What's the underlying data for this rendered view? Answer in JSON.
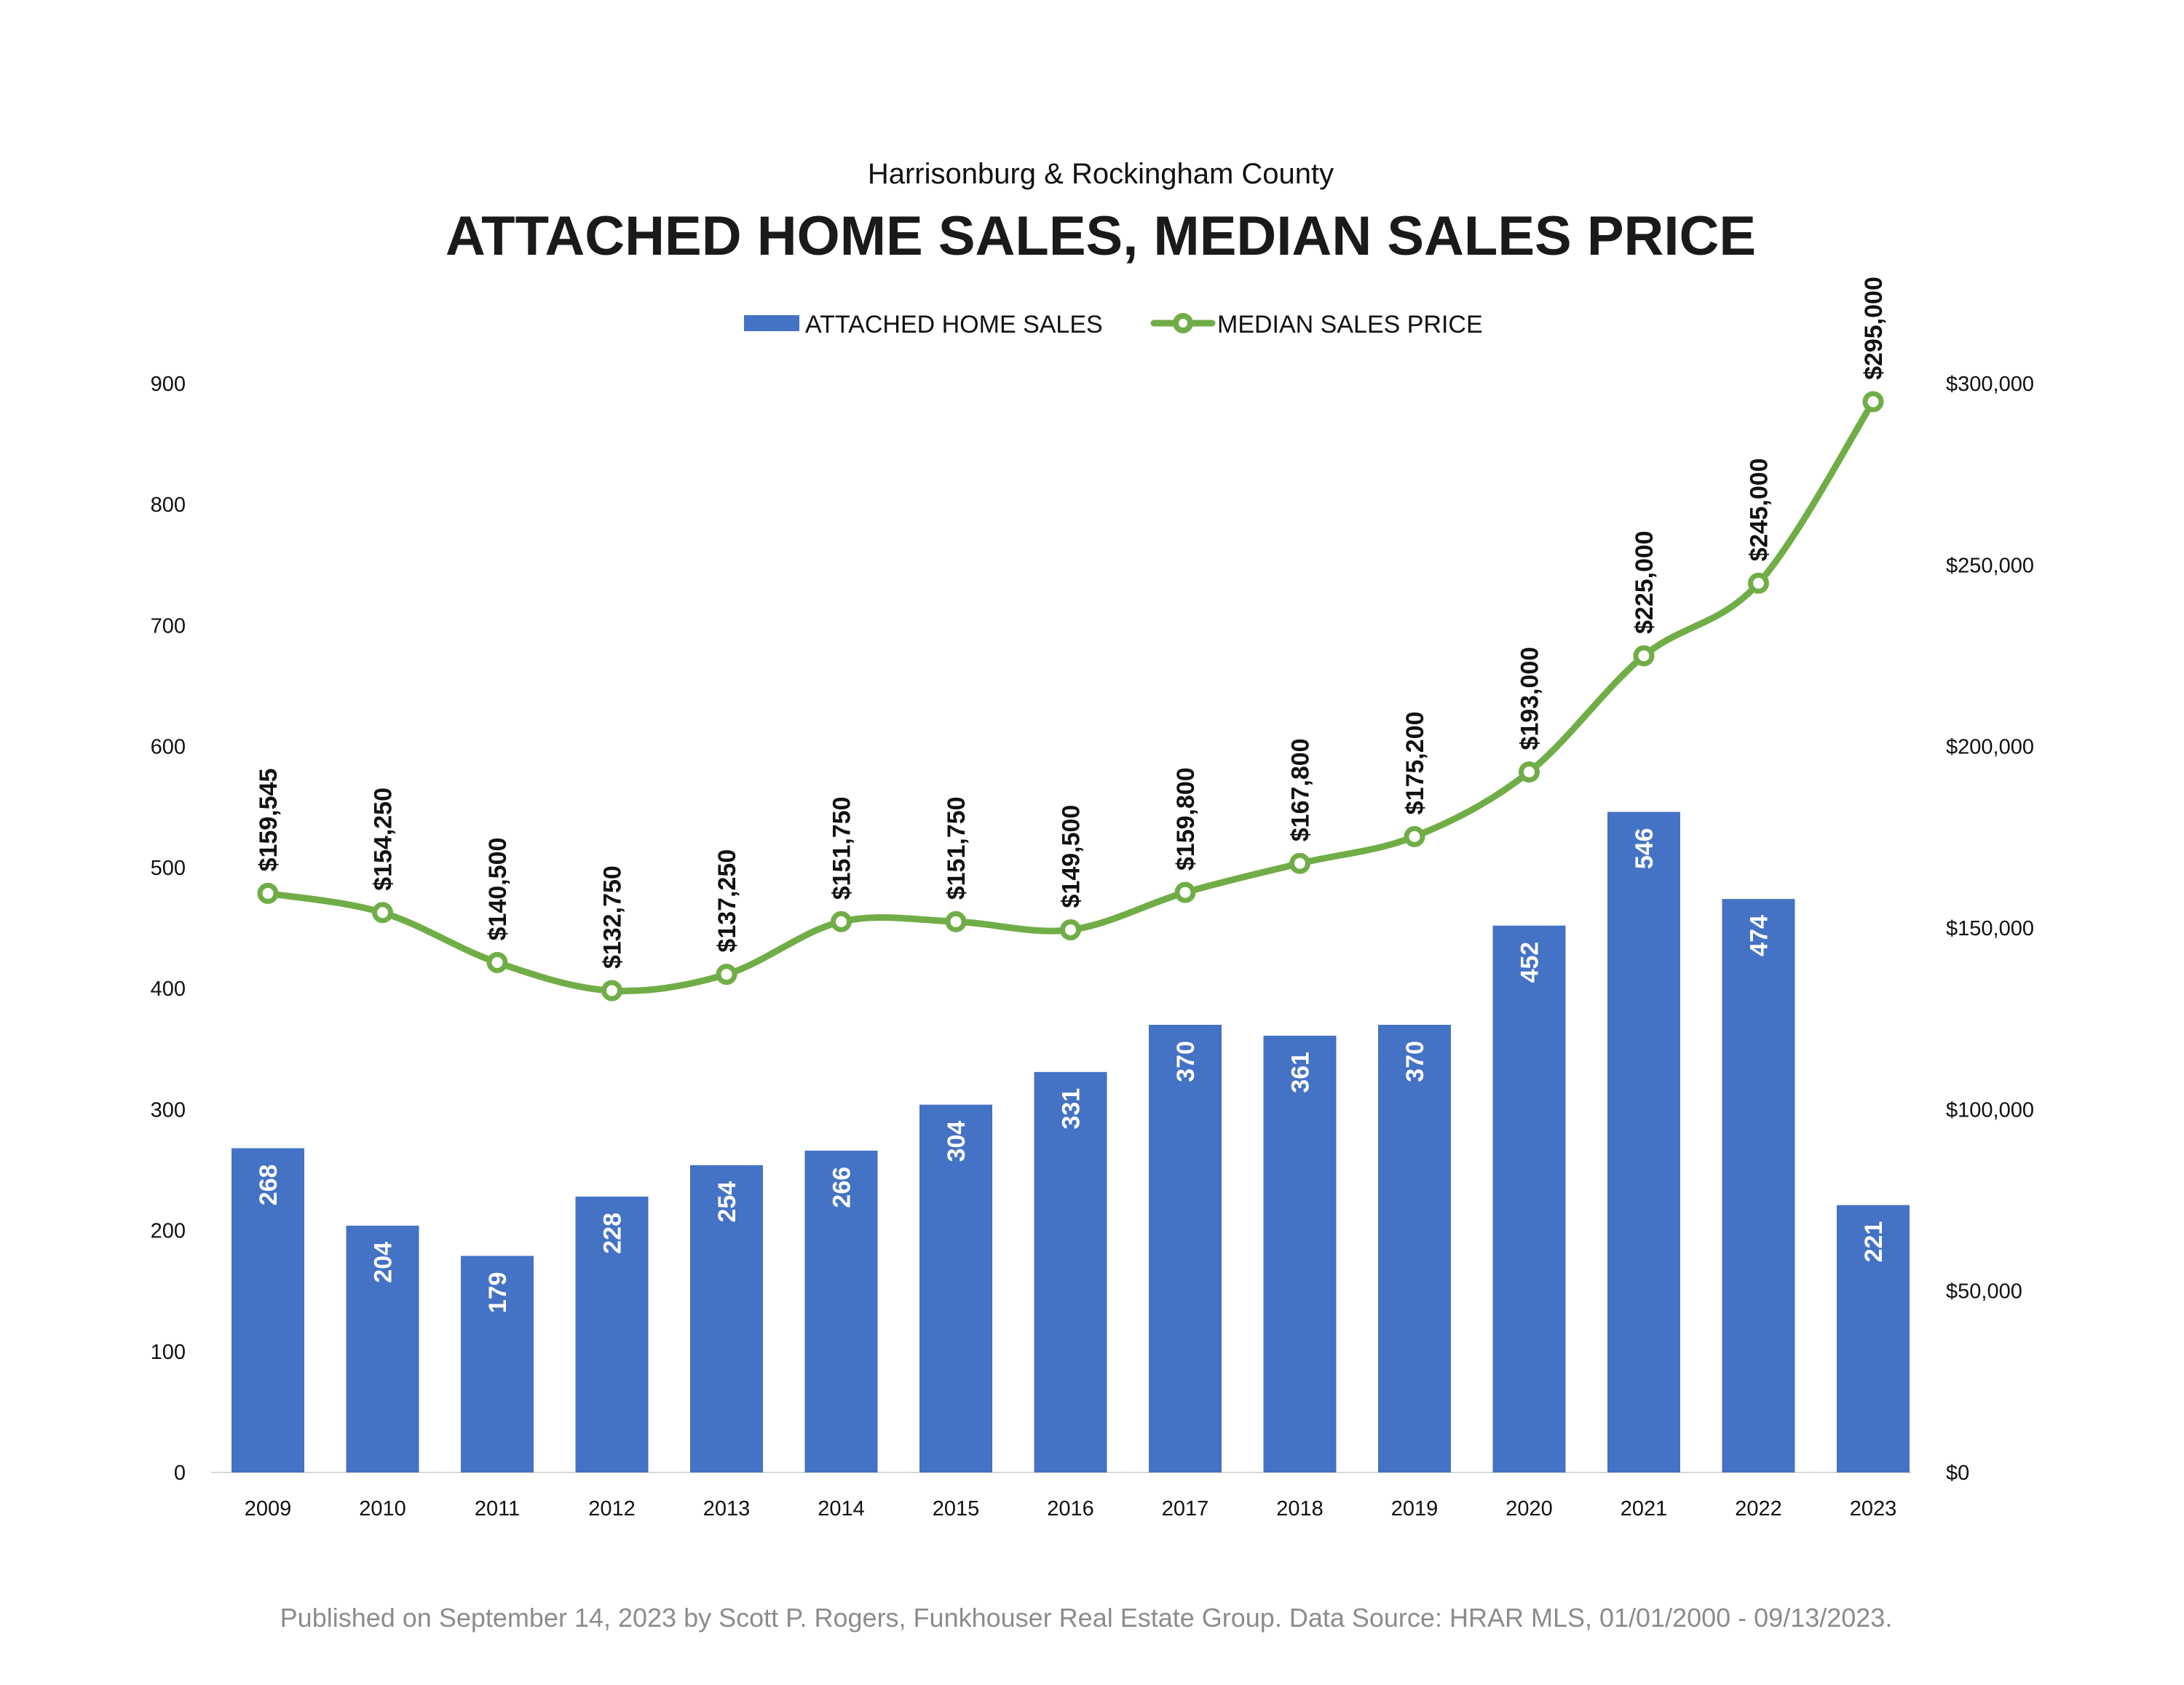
{
  "chart_data": {
    "type": "bar",
    "combo": "bar + line",
    "title": "ATTACHED HOME SALES, MEDIAN SALES PRICE",
    "subtitle": "Harrisonburg & Rockingham County",
    "categories": [
      "2009",
      "2010",
      "2011",
      "2012",
      "2013",
      "2014",
      "2015",
      "2016",
      "2017",
      "2018",
      "2019",
      "2020",
      "2021",
      "2022",
      "2023"
    ],
    "series": [
      {
        "name": "ATTACHED HOME SALES",
        "type": "bar",
        "axis": "left",
        "color": "#4472C4",
        "values": [
          268,
          204,
          179,
          228,
          254,
          266,
          304,
          331,
          370,
          361,
          370,
          452,
          546,
          474,
          221
        ],
        "labels": [
          "268",
          "204",
          "179",
          "228",
          "254",
          "266",
          "304",
          "331",
          "370",
          "361",
          "370",
          "452",
          "546",
          "474",
          "221"
        ]
      },
      {
        "name": "MEDIAN SALES PRICE",
        "type": "line",
        "axis": "right",
        "color": "#70AD47",
        "values": [
          159545,
          154250,
          140500,
          132750,
          137250,
          151750,
          151750,
          149500,
          159800,
          167800,
          175200,
          193000,
          225000,
          245000,
          295000
        ],
        "labels": [
          "$159,545",
          "$154,250",
          "$140,500",
          "$132,750",
          "$137,250",
          "$151,750",
          "$151,750",
          "$149,500",
          "$159,800",
          "$167,800",
          "$175,200",
          "$193,000",
          "$225,000",
          "$245,000",
          "$295,000"
        ]
      }
    ],
    "left_axis": {
      "ylim": [
        0,
        900
      ],
      "ticks": [
        "0",
        "100",
        "200",
        "300",
        "400",
        "500",
        "600",
        "700",
        "800",
        "900"
      ]
    },
    "right_axis": {
      "ylim": [
        0,
        300000
      ],
      "ticks": [
        "$0",
        "$50,000",
        "$100,000",
        "$150,000",
        "$200,000",
        "$250,000",
        "$300,000"
      ]
    },
    "grid": false,
    "legend_position": "top-center",
    "footer": "Published on September 14, 2023 by Scott P. Rogers, Funkhouser Real Estate Group. Data Source: HRAR MLS, 01/01/2000 - 09/13/2023."
  }
}
